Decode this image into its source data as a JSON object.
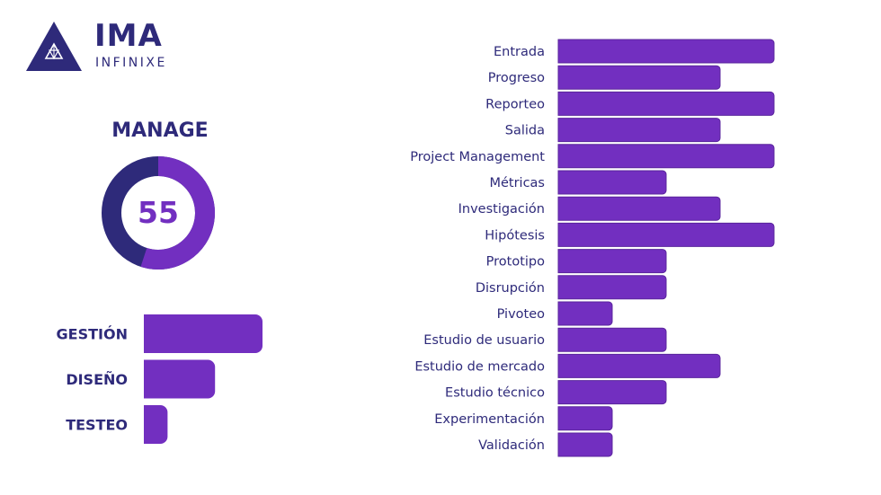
{
  "brand": {
    "name": "IMA",
    "subtitle": "INFINIXE",
    "colors": {
      "navy": "#2e2a7a",
      "purple": "#722fc0",
      "bar_stroke": "#5a259c"
    }
  },
  "gauge": {
    "title": "MANAGE",
    "value": 55,
    "display": "55",
    "max": 100
  },
  "chart_data": [
    {
      "type": "bar",
      "orientation": "horizontal",
      "title": "",
      "categories": [
        "GESTIÓN",
        "DISEÑO",
        "TESTEO"
      ],
      "values": [
        5,
        3,
        1
      ],
      "xlim": [
        0,
        5
      ]
    },
    {
      "type": "bar",
      "orientation": "horizontal",
      "title": "",
      "categories": [
        "Entrada",
        "Progreso",
        "Reporteo",
        "Salida",
        "Project Management",
        "Métricas",
        "Investigación",
        "Hipótesis",
        "Prototipo",
        "Disrupción",
        "Pivoteo",
        "Estudio de usuario",
        "Estudio de mercado",
        "Estudio técnico",
        "Experimentación",
        "Validación"
      ],
      "values": [
        4,
        3,
        4,
        3,
        4,
        2,
        3,
        4,
        2,
        2,
        1,
        2,
        3,
        2,
        1,
        1
      ],
      "xlim": [
        0,
        4
      ]
    }
  ]
}
